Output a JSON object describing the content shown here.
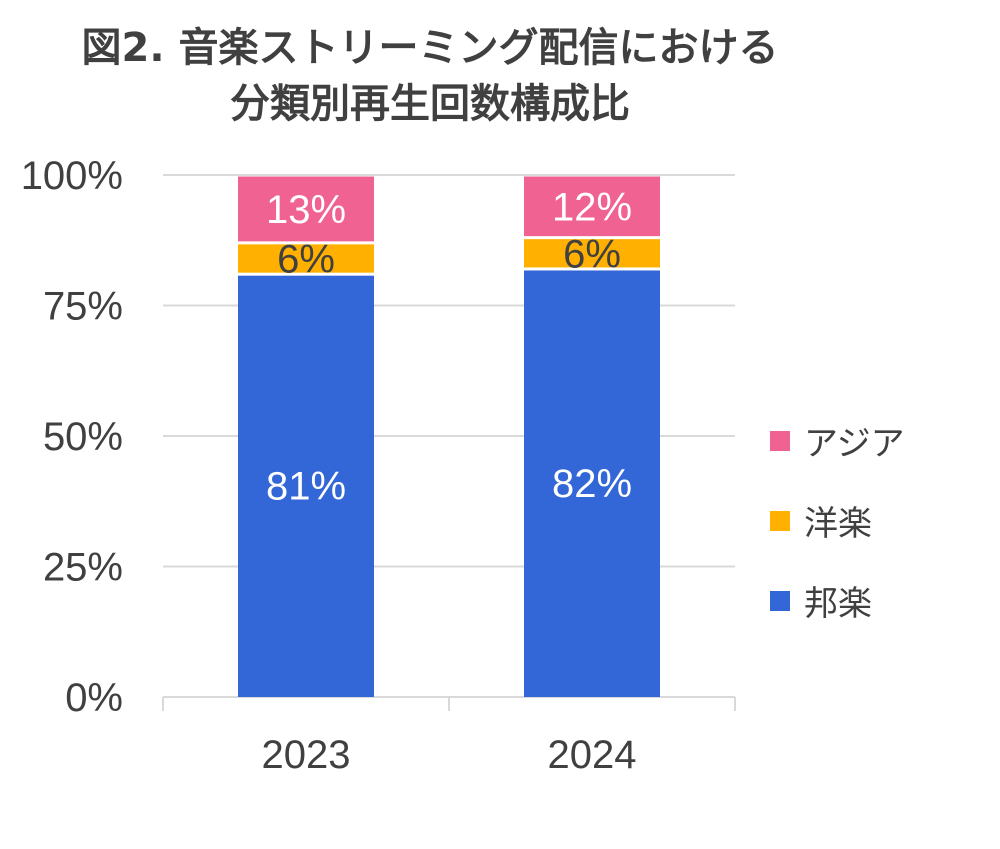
{
  "chart_data": {
    "type": "bar",
    "stacked": true,
    "title_line1": "図2. 音楽ストリーミング配信における",
    "title_line2": "分類別再生回数構成比",
    "categories": [
      "2023",
      "2024"
    ],
    "series": [
      {
        "name": "邦楽",
        "values": [
          81,
          82
        ],
        "labels": [
          "81%",
          "82%"
        ],
        "color": "#3366D6",
        "label_color": "#ffffff"
      },
      {
        "name": "洋楽",
        "values": [
          6,
          6
        ],
        "labels": [
          "6%",
          "6%"
        ],
        "color": "#FFB000",
        "label_color": "#404040"
      },
      {
        "name": "アジア",
        "values": [
          13,
          12
        ],
        "labels": [
          "13%",
          "12%"
        ],
        "color": "#F06292",
        "label_color": "#ffffff"
      }
    ],
    "yticks": [
      "0%",
      "25%",
      "50%",
      "75%",
      "100%"
    ],
    "ylim": [
      0,
      100
    ],
    "grid": true,
    "legend_position": "right",
    "legend_order": [
      "アジア",
      "洋楽",
      "邦楽"
    ]
  }
}
